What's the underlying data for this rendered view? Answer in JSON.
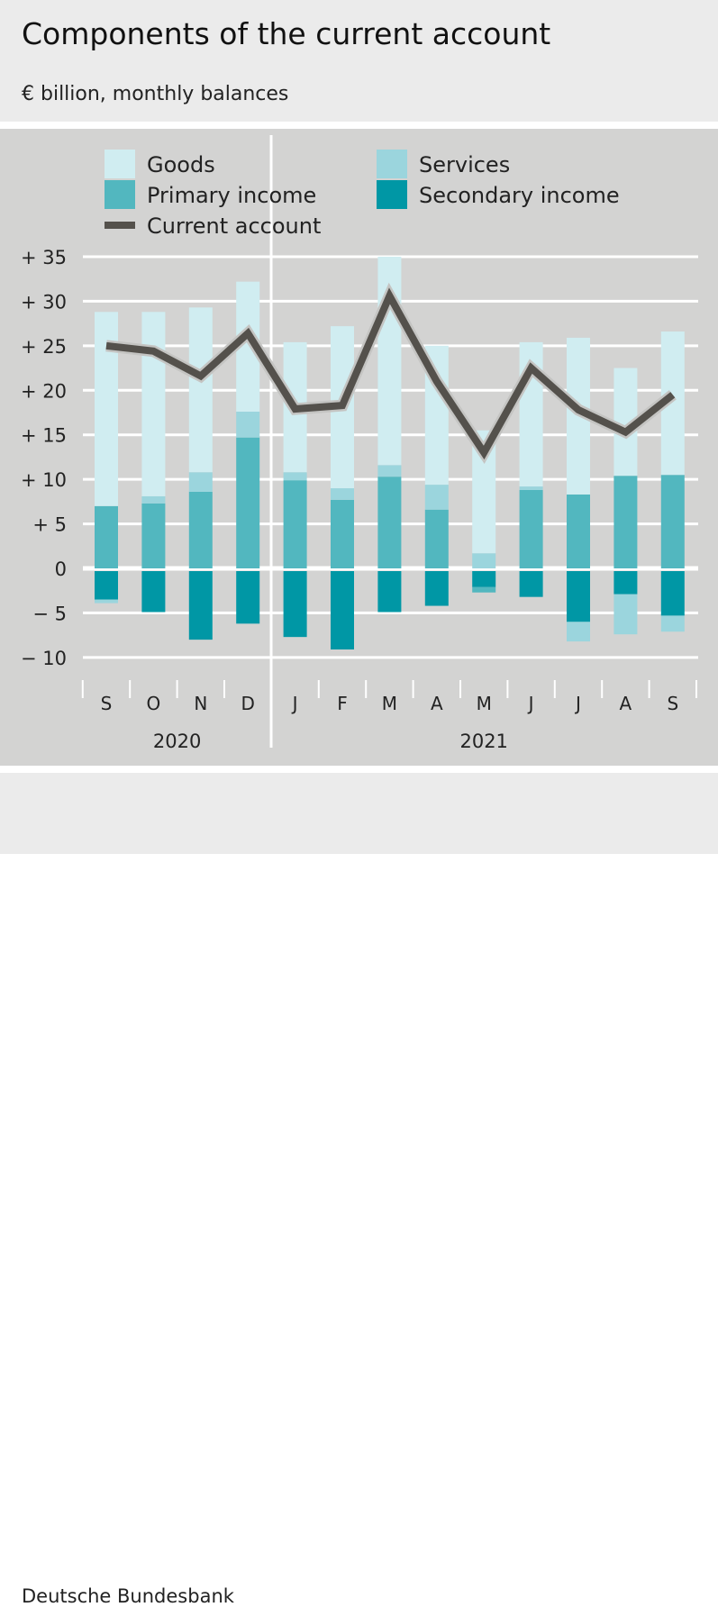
{
  "title": "Components of the current account",
  "subtitle": "€ billion, monthly balances",
  "source": "Deutsche Bundesbank",
  "chart_data": {
    "type": "bar",
    "stacked": true,
    "title": "Components of the current account",
    "ylabel": "€ billion, monthly balances",
    "ylim": [
      -10,
      35
    ],
    "yticks": [
      35,
      30,
      25,
      20,
      15,
      10,
      5,
      0,
      -5,
      -10
    ],
    "ytick_labels": [
      "+ 35",
      "+ 30",
      "+ 25",
      "+ 20",
      "+ 15",
      "+ 10",
      "+   5",
      "0",
      "−   5",
      "− 10"
    ],
    "grid": true,
    "legend_position": "top",
    "categories": [
      "S",
      "O",
      "N",
      "D",
      "J",
      "F",
      "M",
      "A",
      "M",
      "J",
      "J",
      "A",
      "S"
    ],
    "years": [
      {
        "label": "2020",
        "months": 4
      },
      {
        "label": "2021",
        "months": 9
      }
    ],
    "colors": {
      "Goods": "#d0edf1",
      "Services": "#9bd5dd",
      "Primary income": "#52b7bf",
      "Secondary income": "#0097a5",
      "Current account": "#54514c"
    },
    "series": [
      {
        "name": "Goods",
        "type": "bar",
        "values": [
          21.8,
          20.7,
          18.5,
          14.6,
          14.6,
          18.2,
          23.4,
          15.6,
          13.8,
          16.2,
          17.6,
          12.1,
          16.1
        ]
      },
      {
        "name": "Services",
        "type": "bar",
        "values": [
          -0.4,
          0.8,
          2.2,
          2.9,
          0.9,
          1.3,
          1.3,
          2.8,
          1.7,
          0.4,
          -2.2,
          -4.5,
          -1.8
        ]
      },
      {
        "name": "Primary income",
        "type": "bar",
        "values": [
          7.0,
          7.3,
          8.6,
          14.7,
          9.9,
          7.7,
          10.3,
          6.6,
          -0.6,
          8.8,
          8.3,
          10.4,
          10.5
        ]
      },
      {
        "name": "Secondary income",
        "type": "bar",
        "values": [
          -3.2,
          -4.6,
          -7.7,
          -5.9,
          -7.4,
          -8.8,
          -4.6,
          -3.9,
          -1.8,
          -2.9,
          -5.7,
          -2.6,
          -5.0
        ]
      },
      {
        "name": "Current account",
        "type": "line",
        "values": [
          25.0,
          24.4,
          21.6,
          26.4,
          17.9,
          18.3,
          30.6,
          21.0,
          13.0,
          22.5,
          17.8,
          15.3,
          19.5
        ]
      }
    ]
  }
}
